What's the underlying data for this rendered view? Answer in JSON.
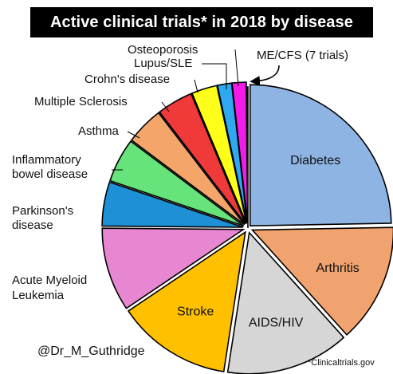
{
  "title": "Active clinical trials* in 2018 by disease",
  "credit": "@Dr_M_Guthridge",
  "source": "*Clinicaltrials.gov",
  "chart_data": {
    "type": "pie",
    "title": "Active clinical trials* in 2018 by disease",
    "slices": [
      {
        "label": "Diabetes",
        "value": 24.5,
        "color": "#8EB4E3",
        "label_inside": true
      },
      {
        "label": "Arthritis",
        "value": 13.5,
        "color": "#F0A36E",
        "label_inside": true
      },
      {
        "label": "AIDS/HIV",
        "value": 14.0,
        "color": "#D6D6D6",
        "label_inside": true
      },
      {
        "label": "Stroke",
        "value": 13.0,
        "color": "#FFC000",
        "label_inside": true
      },
      {
        "label": "Acute Myeloid\nLeukemia",
        "value": 9.5,
        "color": "#E887D1",
        "label_inside": false
      },
      {
        "label": "Parkinson's\ndisease",
        "value": 5.0,
        "color": "#1E90D6",
        "label_inside": false
      },
      {
        "label": "Inflammatory\nbowel disease",
        "value": 5.0,
        "color": "#66E37A",
        "label_inside": false
      },
      {
        "label": "Asthma",
        "value": 4.3,
        "color": "#F4A66A",
        "label_inside": false
      },
      {
        "label": "Multiple Sclerosis",
        "value": 4.1,
        "color": "#F03A3A",
        "label_inside": false
      },
      {
        "label": "Crohn's disease",
        "value": 2.9,
        "color": "#FFFF1A",
        "label_inside": false
      },
      {
        "label": "Lupus/SLE",
        "value": 1.6,
        "color": "#2EA8F0",
        "label_inside": false
      },
      {
        "label": "Osteoporosis",
        "value": 1.6,
        "color": "#F21BEA",
        "label_inside": false
      },
      {
        "label": "ME/CFS (7 trials)",
        "value": 0.15,
        "color": "#F4F4F4",
        "label_inside": false
      }
    ]
  }
}
